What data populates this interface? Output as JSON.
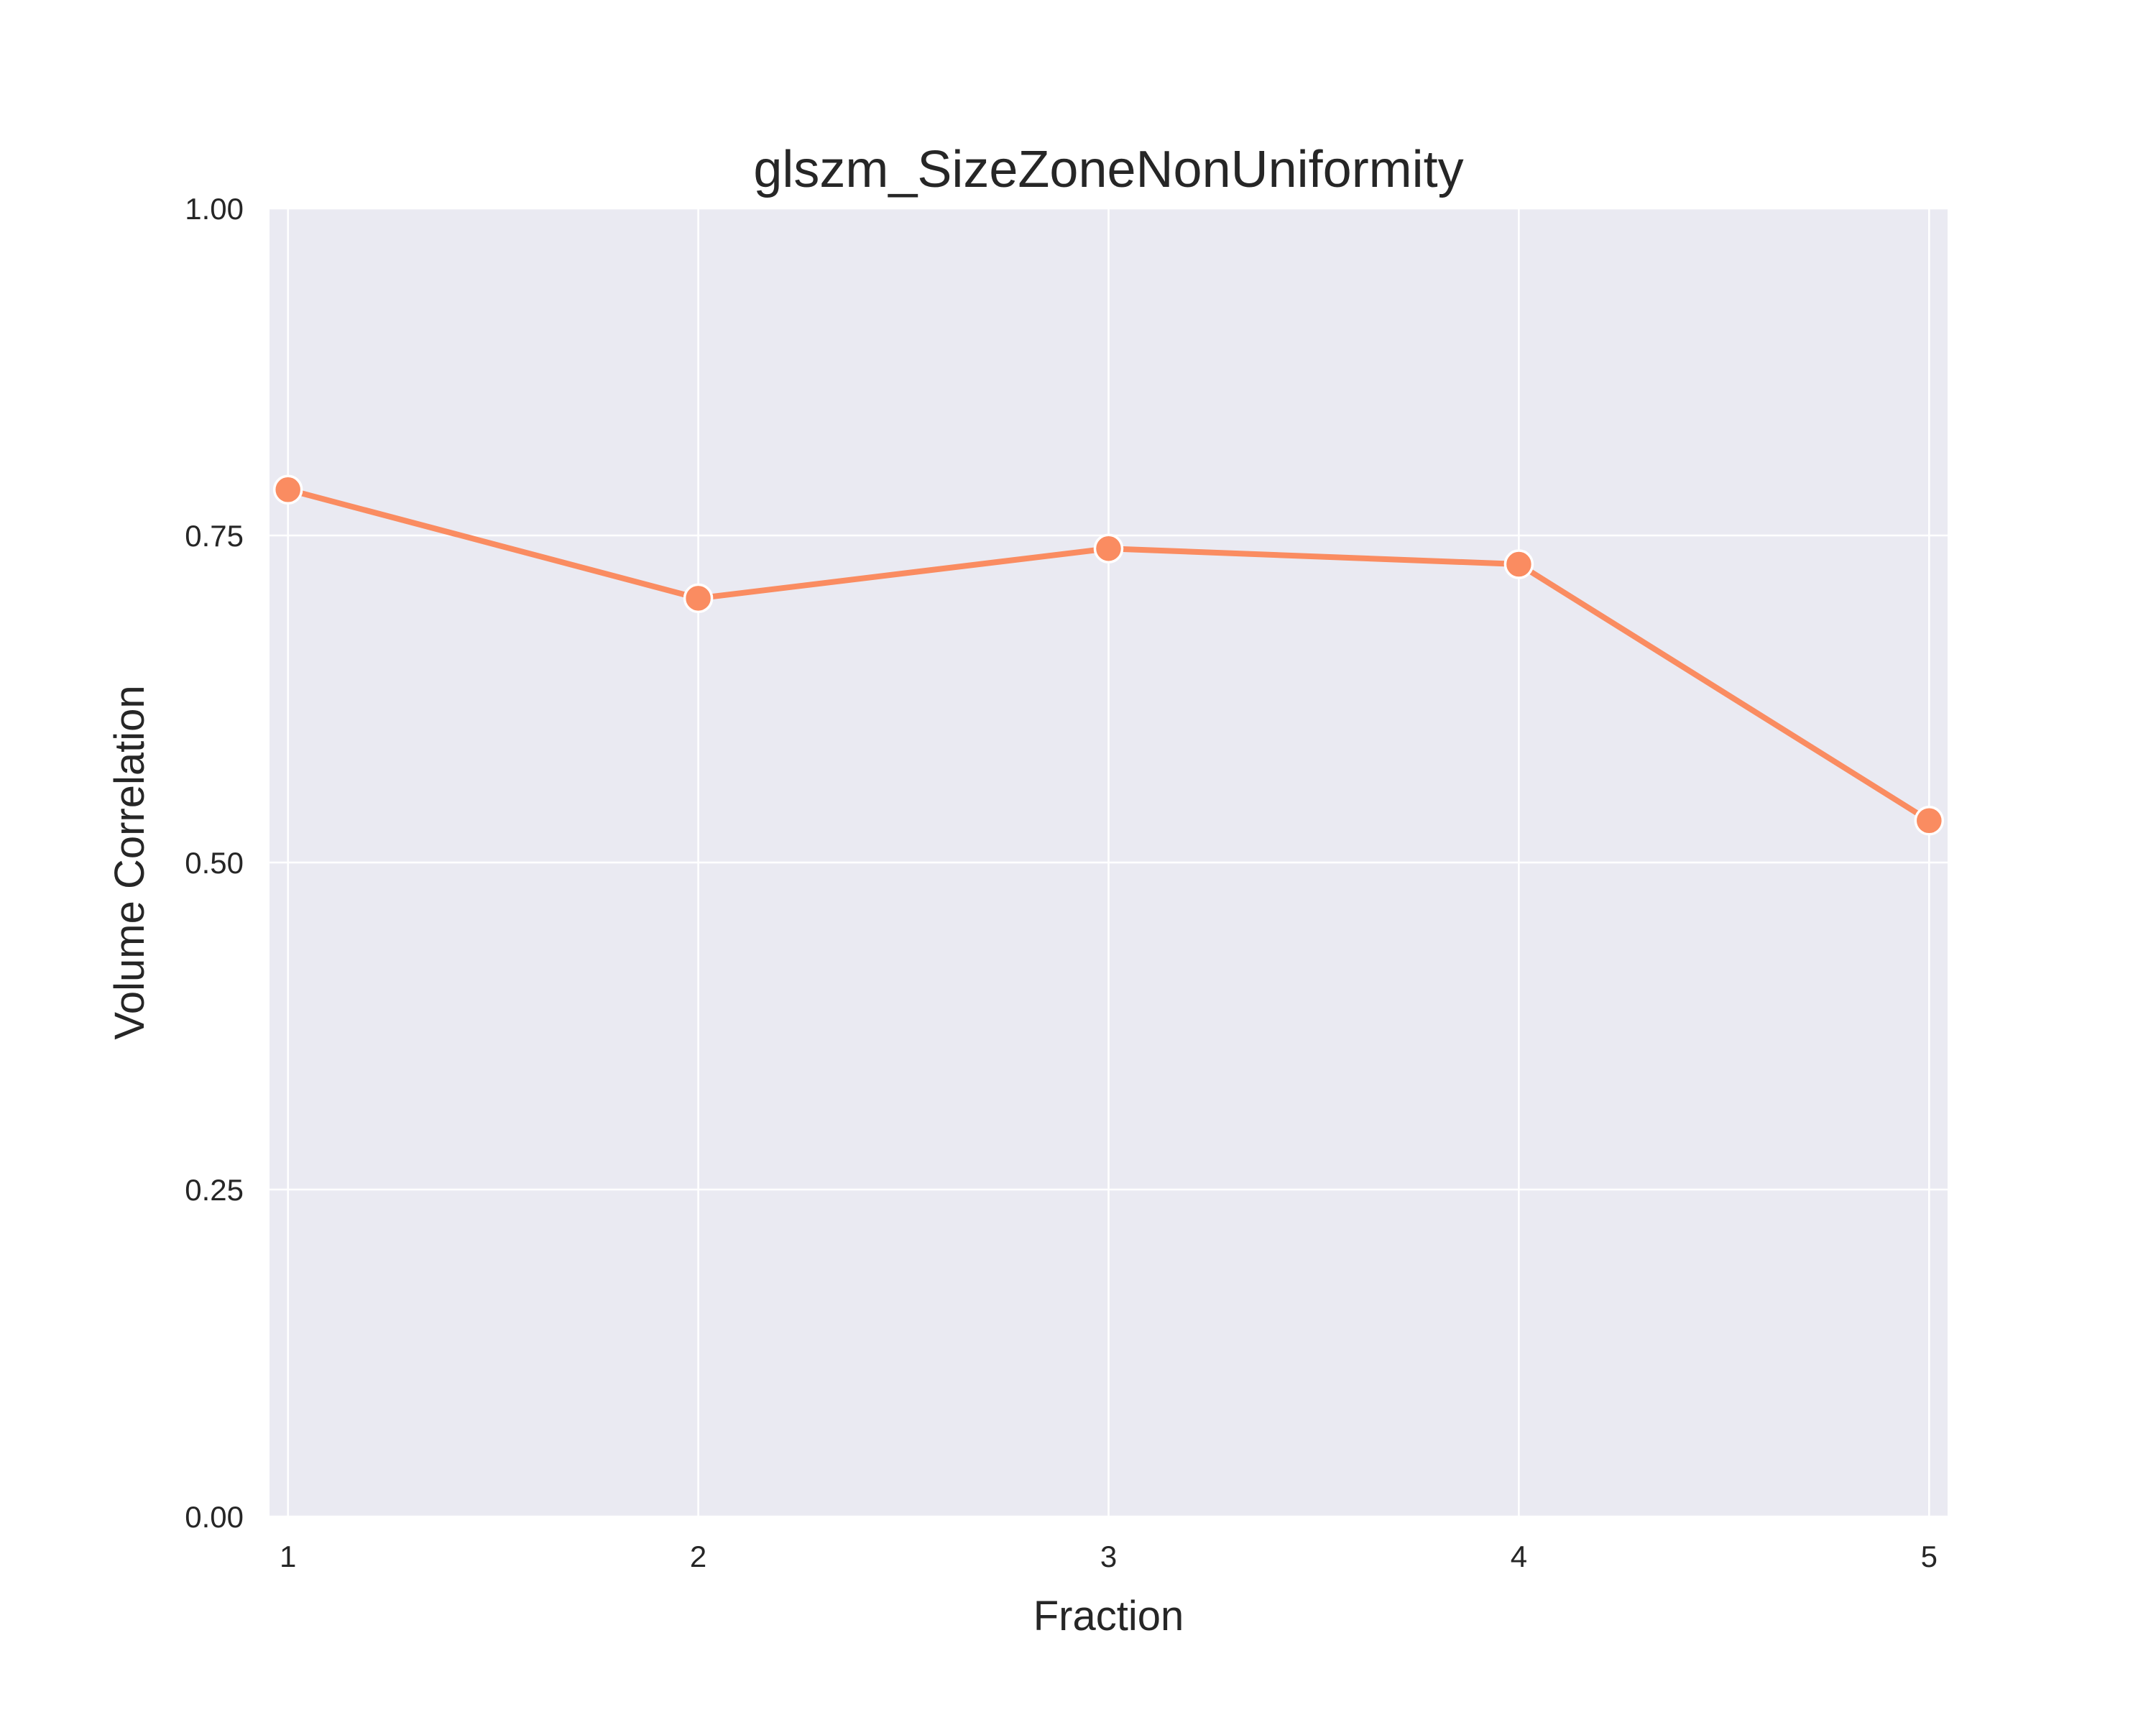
{
  "chart_data": {
    "type": "line",
    "title": "glszm_SizeZoneNonUniformity",
    "xlabel": "Fraction",
    "ylabel": "Volume Correlation",
    "x": [
      1,
      2,
      3,
      4,
      5
    ],
    "x_tick_labels": [
      "1",
      "2",
      "3",
      "4",
      "5"
    ],
    "ylim": [
      0,
      1
    ],
    "y_ticks": [
      0,
      0.25,
      0.5,
      0.75,
      1
    ],
    "y_tick_labels": [
      "0.00",
      "0.25",
      "0.50",
      "0.75",
      "1.00"
    ],
    "grid": true,
    "series": [
      {
        "values": [
          0.785,
          0.702,
          0.74,
          0.728,
          0.532
        ],
        "color": "#fa8c61"
      }
    ]
  }
}
